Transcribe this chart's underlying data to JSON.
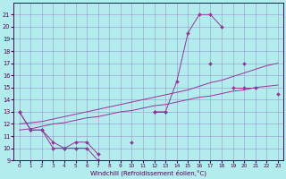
{
  "xlabel": "Windchill (Refroidissement éolien,°C)",
  "xlim": [
    -0.5,
    23.5
  ],
  "ylim": [
    9,
    22
  ],
  "yticks": [
    9,
    10,
    11,
    12,
    13,
    14,
    15,
    16,
    17,
    18,
    19,
    20,
    21
  ],
  "xticks": [
    0,
    1,
    2,
    3,
    4,
    5,
    6,
    7,
    8,
    9,
    10,
    11,
    12,
    13,
    14,
    15,
    16,
    17,
    18,
    19,
    20,
    21,
    22,
    23
  ],
  "bg_color": "#b3ecec",
  "line_color": "#993399",
  "grid_color": "#9999cc",
  "lines": [
    {
      "x": [
        0,
        1,
        2,
        3,
        4,
        5,
        6,
        7,
        8,
        9,
        10,
        11,
        12,
        13,
        14,
        15,
        16,
        17,
        18,
        19,
        20,
        21,
        22,
        23
      ],
      "y": [
        13,
        11.5,
        11.5,
        10,
        10,
        10,
        10,
        9,
        null,
        null,
        10.5,
        null,
        13,
        13,
        15.5,
        19.5,
        21,
        21,
        20,
        null,
        17,
        null,
        null,
        null
      ],
      "marker": "D",
      "markersize": 2.0
    },
    {
      "x": [
        0,
        1,
        2,
        3,
        4,
        5,
        6,
        7,
        8,
        9,
        10,
        11,
        12,
        13,
        14,
        15,
        16,
        17,
        18,
        19,
        20,
        21,
        22,
        23
      ],
      "y": [
        13,
        11.5,
        11.5,
        10.5,
        10,
        10.5,
        10.5,
        9.5,
        null,
        null,
        null,
        null,
        13,
        13,
        null,
        null,
        null,
        17,
        null,
        15,
        15,
        15,
        null,
        14.5
      ],
      "marker": "D",
      "markersize": 2.0
    },
    {
      "x": [
        0,
        1,
        2,
        3,
        4,
        5,
        6,
        7,
        8,
        9,
        10,
        11,
        12,
        13,
        14,
        15,
        16,
        17,
        18,
        19,
        20,
        21,
        22,
        23
      ],
      "y": [
        12.0,
        12.1,
        12.2,
        12.4,
        12.6,
        12.8,
        13.0,
        13.2,
        13.4,
        13.6,
        13.8,
        14.0,
        14.2,
        14.4,
        14.6,
        14.8,
        15.1,
        15.4,
        15.6,
        15.9,
        16.2,
        16.5,
        16.8,
        17.0
      ],
      "marker": null,
      "markersize": 0
    },
    {
      "x": [
        0,
        1,
        2,
        3,
        4,
        5,
        6,
        7,
        8,
        9,
        10,
        11,
        12,
        13,
        14,
        15,
        16,
        17,
        18,
        19,
        20,
        21,
        22,
        23
      ],
      "y": [
        11.5,
        11.6,
        11.8,
        12.0,
        12.1,
        12.3,
        12.5,
        12.6,
        12.8,
        13.0,
        13.1,
        13.3,
        13.5,
        13.6,
        13.8,
        14.0,
        14.2,
        14.3,
        14.5,
        14.7,
        14.8,
        15.0,
        15.1,
        15.2
      ],
      "marker": null,
      "markersize": 0
    }
  ]
}
